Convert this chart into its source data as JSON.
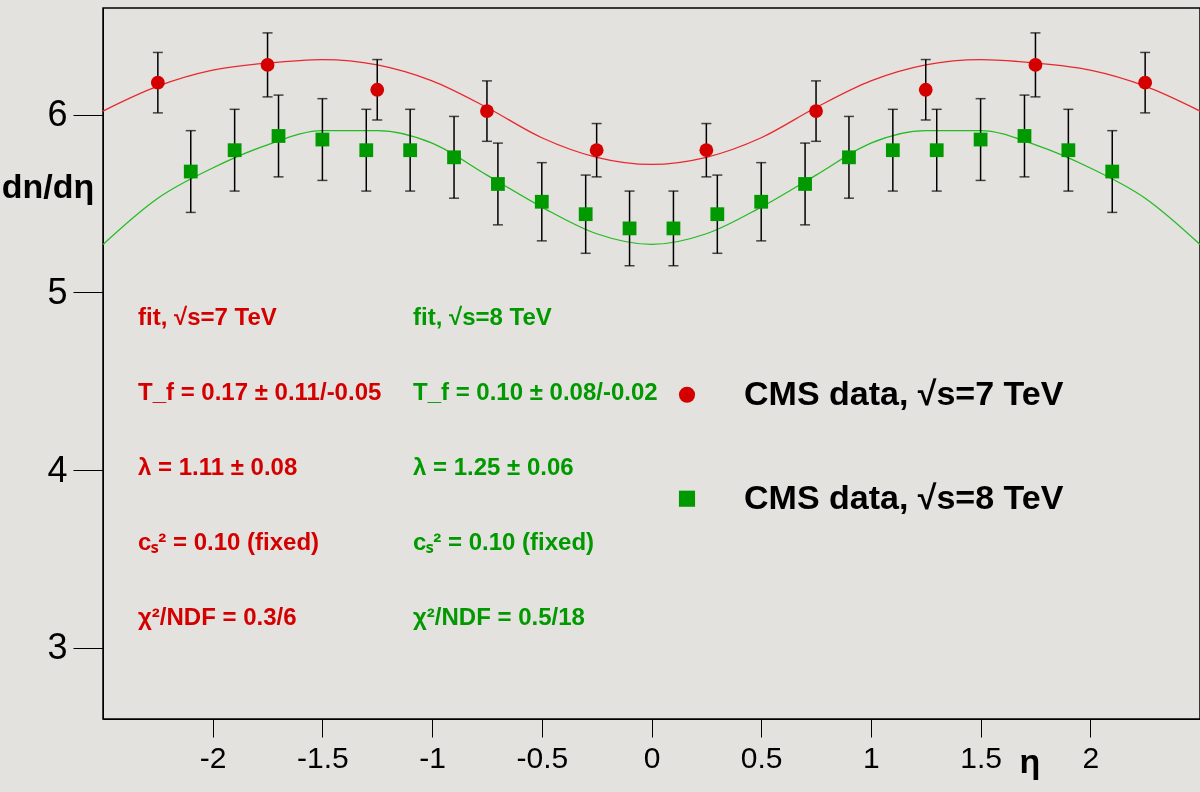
{
  "chart_data": {
    "type": "scatter",
    "xlabel": "η",
    "ylabel": "dn/dη",
    "xlim": [
      -2.5,
      2.5
    ],
    "xticks": [
      -2,
      -1.5,
      -1,
      -0.5,
      0,
      0.5,
      1,
      1.5,
      2
    ],
    "ylim": [
      2.6,
      6.6
    ],
    "yticks": [
      3,
      4,
      5,
      6
    ],
    "grid": false,
    "legend": "right",
    "series": [
      {
        "name": "CMS data, √s=7 TeV",
        "color": "#d40000",
        "marker": "circle",
        "x": [
          -2.25,
          -1.75,
          -1.25,
          -0.75,
          -0.25,
          0.25,
          0.75,
          1.25,
          1.75,
          2.25
        ],
        "values": [
          6.18,
          6.28,
          6.14,
          6.02,
          5.8,
          5.8,
          6.02,
          6.14,
          6.28,
          6.18
        ],
        "errors": [
          0.17,
          0.18,
          0.17,
          0.17,
          0.15,
          0.15,
          0.17,
          0.17,
          0.18,
          0.17
        ]
      },
      {
        "name": "CMS data, √s=8 TeV",
        "color": "#009900",
        "marker": "square",
        "x": [
          -2.1,
          -1.9,
          -1.7,
          -1.5,
          -1.3,
          -1.1,
          -0.9,
          -0.7,
          -0.5,
          -0.3,
          -0.1,
          0.1,
          0.3,
          0.5,
          0.7,
          0.9,
          1.1,
          1.3,
          1.5,
          1.7,
          1.9,
          2.1
        ],
        "values": [
          5.68,
          5.8,
          5.88,
          5.86,
          5.8,
          5.8,
          5.76,
          5.61,
          5.51,
          5.44,
          5.36,
          5.36,
          5.44,
          5.51,
          5.61,
          5.76,
          5.8,
          5.8,
          5.86,
          5.88,
          5.8,
          5.68
        ],
        "errors": [
          0.23,
          0.23,
          0.23,
          0.23,
          0.23,
          0.23,
          0.23,
          0.23,
          0.22,
          0.22,
          0.21,
          0.21,
          0.22,
          0.22,
          0.23,
          0.23,
          0.23,
          0.23,
          0.23,
          0.23,
          0.23,
          0.23
        ]
      },
      {
        "type": "line",
        "color": "#e8282e",
        "x": [
          -2.5,
          -2.25,
          -2,
          -1.75,
          -1.5,
          -1.25,
          -1,
          -0.75,
          -0.5,
          -0.25,
          0,
          0.25,
          0.5,
          0.75,
          1,
          1.25,
          1.5,
          1.75,
          2,
          2.25,
          2.5
        ],
        "values": [
          6.02,
          6.16,
          6.25,
          6.29,
          6.31,
          6.28,
          6.19,
          6.04,
          5.87,
          5.76,
          5.72,
          5.76,
          5.87,
          6.04,
          6.19,
          6.28,
          6.31,
          6.29,
          6.25,
          6.16,
          6.02
        ]
      },
      {
        "type": "line",
        "color": "#22bb22",
        "x": [
          -2.5,
          -2.25,
          -2,
          -1.75,
          -1.5,
          -1.25,
          -1,
          -0.75,
          -0.5,
          -0.25,
          0,
          0.25,
          0.5,
          0.75,
          1,
          1.25,
          1.5,
          1.75,
          2,
          2.25,
          2.5
        ],
        "values": [
          5.27,
          5.53,
          5.7,
          5.83,
          5.91,
          5.91,
          5.84,
          5.66,
          5.48,
          5.33,
          5.27,
          5.33,
          5.48,
          5.66,
          5.84,
          5.91,
          5.91,
          5.83,
          5.7,
          5.53,
          5.27
        ]
      }
    ],
    "annotations": [
      "fit, √s=7 TeV",
      "T_f = 0.17 ± 0.11/-0.05",
      "λ = 1.11 ± 0.08",
      "cₛ² = 0.10 (fixed)",
      "χ²/NDF = 0.3/6",
      "fit, √s=8 TeV",
      "T_f = 0.10 ± 0.08/-0.02",
      "λ = 1.25 ± 0.06",
      "cₛ² = 0.10 (fixed)",
      "χ²/NDF = 0.5/18"
    ]
  }
}
